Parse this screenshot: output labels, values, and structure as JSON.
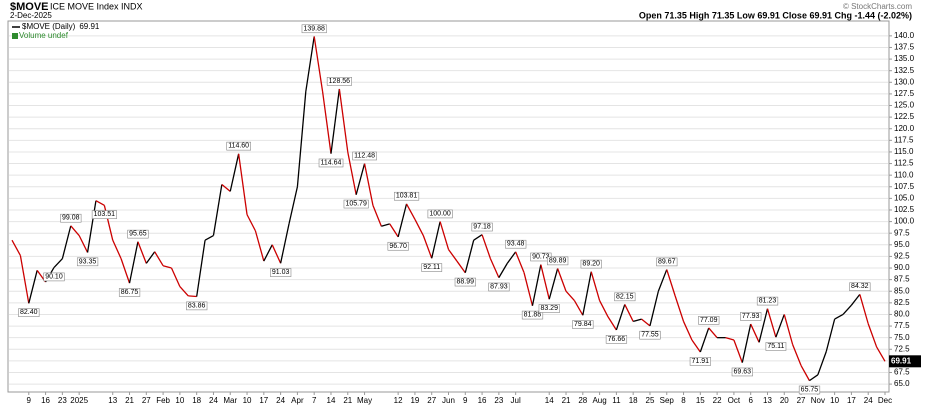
{
  "chart_data": {
    "type": "line",
    "title": "$MOVE",
    "subtitle": "ICE MOVE Index INDX",
    "date": "2-Dec-2025",
    "quote": "Open 71.35  High 71.35  Low 69.91  Close 69.91  Chg -1.44 (-2.02%)",
    "credit": "© StockCharts.com",
    "categories": [
      null,
      null,
      "9",
      null,
      "16",
      null,
      "23",
      null,
      "2025",
      null,
      null,
      null,
      "13",
      null,
      "21",
      null,
      "27",
      null,
      "Feb",
      null,
      "10",
      null,
      "18",
      null,
      "24",
      null,
      "Mar",
      null,
      "10",
      null,
      "17",
      null,
      "24",
      null,
      "Apr",
      null,
      "7",
      null,
      "14",
      null,
      "21",
      null,
      "May",
      null,
      null,
      null,
      "12",
      null,
      "19",
      null,
      "27",
      null,
      "Jun",
      null,
      "9",
      null,
      "16",
      null,
      "23",
      null,
      "Jul",
      null,
      null,
      null,
      "14",
      null,
      "21",
      null,
      "28",
      null,
      "Aug",
      null,
      "11",
      null,
      "18",
      null,
      "25",
      null,
      "Sep",
      null,
      "8",
      null,
      "15",
      null,
      "22",
      null,
      "Oct",
      null,
      "6",
      null,
      "13",
      null,
      "20",
      null,
      "27",
      null,
      "Nov",
      null,
      "10",
      null,
      "17",
      null,
      "24",
      null,
      "Dec"
    ],
    "series": [
      {
        "name": "$MOVE (Daily)",
        "color": "#000000",
        "down_color": "#cc0000",
        "values": [
          96,
          92.7,
          82.4,
          89.5,
          87,
          90.1,
          92,
          99.08,
          97,
          93.35,
          104.5,
          103.51,
          96,
          92,
          86.75,
          95.65,
          91,
          93.5,
          90.5,
          90,
          86,
          84,
          83.86,
          96,
          97,
          108,
          106.5,
          114.6,
          101.5,
          98,
          91.5,
          95,
          91.03,
          99.5,
          107.5,
          128,
          139.88,
          128,
          114.64,
          128.56,
          115,
          105.79,
          112.48,
          103.5,
          99,
          99.5,
          96.7,
          103.81,
          100.5,
          97,
          92.11,
          100,
          94,
          91.5,
          88.99,
          96,
          97.18,
          92,
          87.93,
          91,
          93.48,
          89,
          81.88,
          90.73,
          83.29,
          89.89,
          85,
          83,
          79.84,
          89.2,
          83,
          79.5,
          76.66,
          82.15,
          78.5,
          79,
          77.55,
          85,
          89.67,
          84,
          78.5,
          74.5,
          71.91,
          77.09,
          75,
          75,
          74.5,
          69.63,
          77.93,
          74,
          81.23,
          75.11,
          80,
          73.5,
          69,
          65.75,
          67,
          72,
          79,
          80,
          82,
          84.32,
          78,
          73,
          69.91
        ],
        "value_labels": [
          null,
          null,
          "82.40",
          null,
          null,
          "90.10",
          null,
          "99.08",
          null,
          "93.35",
          null,
          "103.51",
          null,
          null,
          "86.75",
          "95.65",
          null,
          null,
          null,
          null,
          null,
          null,
          "83.86",
          null,
          null,
          null,
          null,
          "114.60",
          null,
          null,
          null,
          null,
          "91.03",
          null,
          null,
          null,
          "139.88",
          null,
          "114.64",
          "128.56",
          null,
          "105.79",
          "112.48",
          null,
          null,
          null,
          "96.70",
          "103.81",
          null,
          null,
          "92.11",
          "100.00",
          null,
          null,
          "88.99",
          null,
          "97.18",
          null,
          "87.93",
          null,
          "93.48",
          null,
          "81.88",
          "90.73",
          "83.29",
          "89.89",
          null,
          null,
          "79.84",
          "89.20",
          null,
          null,
          "76.66",
          "82.15",
          null,
          null,
          "77.55",
          null,
          "89.67",
          null,
          null,
          null,
          "71.91",
          "77.09",
          null,
          null,
          null,
          "69.63",
          "77.93",
          null,
          "81.23",
          "75.11",
          null,
          null,
          null,
          "65.75",
          null,
          null,
          null,
          null,
          null,
          "84.32",
          null,
          null,
          null
        ]
      },
      {
        "name": "Volume undef",
        "color": "#2e8b2e"
      }
    ],
    "ylim": [
      63.3,
      143.2
    ],
    "yticks": [
      {
        "value": 65,
        "label": "65.0"
      },
      {
        "value": 67.5,
        "label": "67.5"
      },
      {
        "value": 70,
        "label": "70.0"
      },
      {
        "value": 72.5,
        "label": "72.5"
      },
      {
        "value": 75,
        "label": "75.0"
      },
      {
        "value": 77.5,
        "label": "77.5"
      },
      {
        "value": 80,
        "label": "80.0"
      },
      {
        "value": 82.5,
        "label": "82.5"
      },
      {
        "value": 85,
        "label": "85.0"
      },
      {
        "value": 87.5,
        "label": "87.5"
      },
      {
        "value": 90,
        "label": "90.0"
      },
      {
        "value": 92.5,
        "label": "92.5"
      },
      {
        "value": 95,
        "label": "95.0"
      },
      {
        "value": 97.5,
        "label": "97.5"
      },
      {
        "value": 100,
        "label": "100.0"
      },
      {
        "value": 102.5,
        "label": "102.5"
      },
      {
        "value": 105,
        "label": "105.0"
      },
      {
        "value": 107.5,
        "label": "107.5"
      },
      {
        "value": 110,
        "label": "110.0"
      },
      {
        "value": 112.5,
        "label": "112.5"
      },
      {
        "value": 115,
        "label": "115.0"
      },
      {
        "value": 117.5,
        "label": "117.5"
      },
      {
        "value": 120,
        "label": "120.0"
      },
      {
        "value": 122.5,
        "label": "122.5"
      },
      {
        "value": 125,
        "label": "125.0"
      },
      {
        "value": 127.5,
        "label": "127.5"
      },
      {
        "value": 130,
        "label": "130.0"
      },
      {
        "value": 132.5,
        "label": "132.5"
      },
      {
        "value": 135,
        "label": "135.0"
      },
      {
        "value": 137.5,
        "label": "137.5"
      },
      {
        "value": 140,
        "label": "140.0"
      }
    ],
    "grid": true
  }
}
